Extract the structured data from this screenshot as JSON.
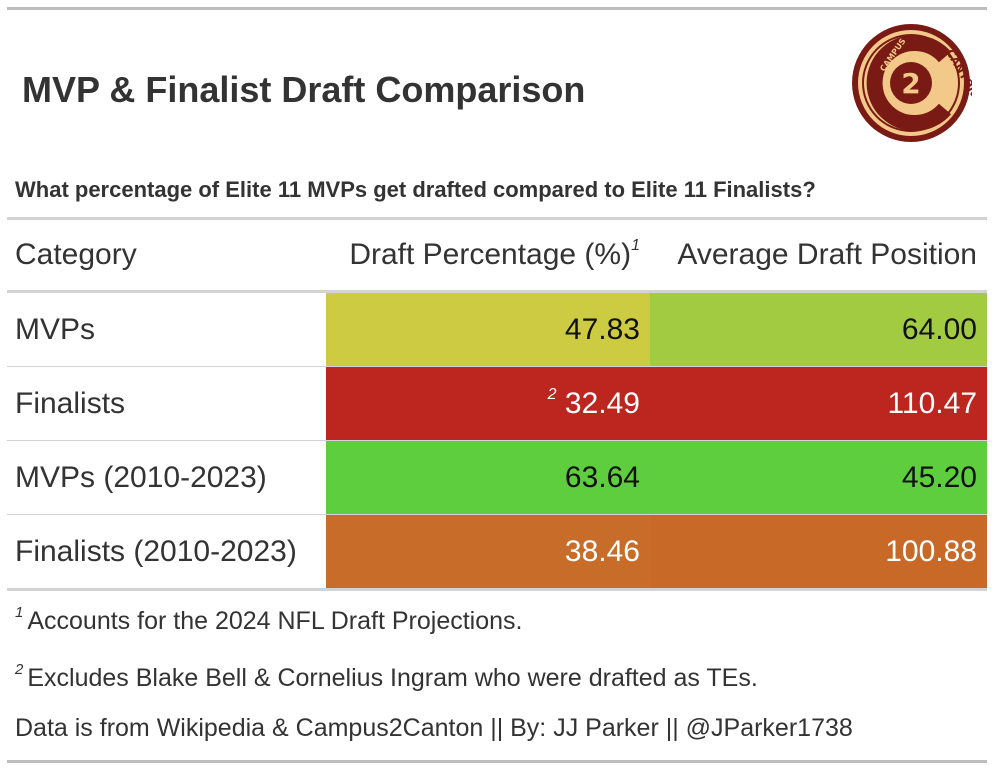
{
  "title": "MVP & Finalist Draft Comparison",
  "subtitle": "What percentage of Elite 11 MVPs get drafted compared to Elite 11 Finalists?",
  "logo": {
    "text_top": "CAMPUS",
    "text_center": "2",
    "text_side": "CANTON"
  },
  "columns": {
    "category": "Category",
    "draft_pct": "Draft Percentage (%)",
    "draft_pct_mark": "1",
    "avg_pos": "Average Draft Position"
  },
  "rows": [
    {
      "category": "MVPs",
      "draft_pct": "47.83",
      "pct_mark": "",
      "avg_pos": "64.00"
    },
    {
      "category": "Finalists",
      "draft_pct": "32.49",
      "pct_mark": "2",
      "avg_pos": "110.47"
    },
    {
      "category": "MVPs (2010-2023)",
      "draft_pct": "63.64",
      "pct_mark": "",
      "avg_pos": "45.20"
    },
    {
      "category": "Finalists (2010-2023)",
      "draft_pct": "38.46",
      "pct_mark": "",
      "avg_pos": "100.88"
    }
  ],
  "cell_colors": {
    "draft_pct": [
      "#cdcb41",
      "#bd261e",
      "#5ecd3e",
      "#c86c2a"
    ],
    "avg_pos": [
      "#a3cb42",
      "#bd261e",
      "#5ecd3e",
      "#c96928"
    ]
  },
  "cell_text_colors": {
    "draft_pct": [
      "#111111",
      "#ffffff",
      "#111111",
      "#ffffff"
    ],
    "avg_pos": [
      "#111111",
      "#ffffff",
      "#111111",
      "#ffffff"
    ]
  },
  "footnotes": [
    {
      "mark": "1",
      "text": "Accounts for the 2024 NFL Draft Projections."
    },
    {
      "mark": "2",
      "text": "Excludes Blake Bell & Cornelius Ingram who were drafted as TEs."
    }
  ],
  "source_note": "Data is from Wikipedia & Campus2Canton || By: JJ Parker || @JParker1738",
  "chart_data": {
    "type": "table",
    "title": "MVP & Finalist Draft Comparison",
    "subtitle": "What percentage of Elite 11 MVPs get drafted compared to Elite 11 Finalists?",
    "columns": [
      "Category",
      "Draft Percentage (%)",
      "Average Draft Position"
    ],
    "categories": [
      "MVPs",
      "Finalists",
      "MVPs (2010-2023)",
      "Finalists (2010-2023)"
    ],
    "series": [
      {
        "name": "Draft Percentage (%)",
        "values": [
          47.83,
          32.49,
          63.64,
          38.46
        ]
      },
      {
        "name": "Average Draft Position",
        "values": [
          64.0,
          110.47,
          45.2,
          100.88
        ]
      }
    ]
  }
}
